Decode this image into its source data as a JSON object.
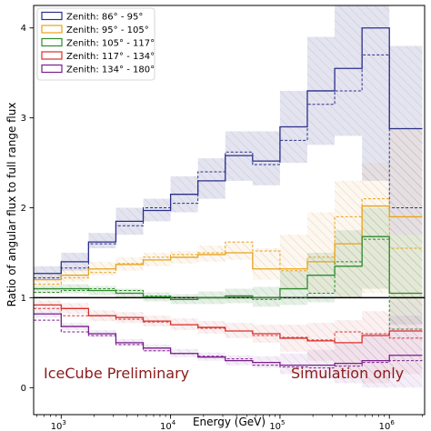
{
  "chart_data": {
    "type": "line",
    "xlabel": "Energy (GeV)",
    "ylabel": "Ratio of angular flux to full range flux",
    "xscale": "log",
    "xlim": [
      560,
      2100000
    ],
    "ylim": [
      -0.3,
      4.25
    ],
    "x_ticks": [
      {
        "value": 1000,
        "base": "10",
        "exp": "3"
      },
      {
        "value": 10000,
        "base": "10",
        "exp": "4"
      },
      {
        "value": 100000,
        "base": "10",
        "exp": "5"
      },
      {
        "value": 1000000,
        "base": "10",
        "exp": "6"
      }
    ],
    "y_ticks": [
      0,
      1,
      2,
      3,
      4
    ],
    "reference_line": 1,
    "legend_position": "top-left",
    "bin_edges": [
      562,
      1000,
      1778,
      3162,
      5623,
      10000,
      17783,
      31623,
      56234,
      100000,
      177828,
      316228,
      562341,
      1000000,
      2000000
    ],
    "series": [
      {
        "name": "Zenith: 86° - 95°",
        "color": "#2b2f8a",
        "band_color": "#2b2f8a",
        "values": [
          1.27,
          1.4,
          1.62,
          1.85,
          1.97,
          2.15,
          2.3,
          2.58,
          2.52,
          2.9,
          3.3,
          3.55,
          4.0,
          2.88
        ],
        "dashed": [
          1.22,
          1.33,
          1.6,
          1.8,
          2.0,
          2.05,
          2.4,
          2.62,
          2.48,
          2.75,
          3.15,
          3.3,
          3.7,
          2.0
        ],
        "band_low": [
          1.2,
          1.3,
          1.55,
          1.7,
          1.85,
          1.95,
          2.1,
          2.3,
          2.25,
          2.5,
          2.7,
          2.8,
          2.3,
          1.7
        ],
        "band_high": [
          1.35,
          1.5,
          1.72,
          2.0,
          2.1,
          2.35,
          2.55,
          2.85,
          2.85,
          3.3,
          3.9,
          4.35,
          4.35,
          3.8
        ]
      },
      {
        "name": "Zenith: 95° - 105°",
        "color": "#e8a317",
        "band_color": "#f5c27a",
        "values": [
          1.2,
          1.25,
          1.32,
          1.37,
          1.42,
          1.45,
          1.48,
          1.5,
          1.32,
          1.32,
          1.4,
          1.6,
          2.02,
          1.9
        ],
        "dashed": [
          1.15,
          1.22,
          1.28,
          1.38,
          1.45,
          1.48,
          1.5,
          1.62,
          1.52,
          1.3,
          1.45,
          1.9,
          2.1,
          1.55
        ],
        "band_low": [
          1.15,
          1.18,
          1.25,
          1.3,
          1.35,
          1.38,
          1.4,
          1.42,
          1.2,
          1.1,
          1.05,
          1.0,
          1.05,
          0.95
        ],
        "band_high": [
          1.25,
          1.32,
          1.4,
          1.45,
          1.5,
          1.52,
          1.58,
          1.62,
          1.55,
          1.7,
          1.95,
          2.3,
          2.5,
          2.9
        ]
      },
      {
        "name": "Zenith: 105° - 117°",
        "color": "#2e8b2e",
        "band_color": "#2e8b2e",
        "values": [
          1.1,
          1.1,
          1.08,
          1.05,
          1.01,
          0.98,
          1.0,
          1.02,
          1.0,
          1.1,
          1.25,
          1.35,
          1.68,
          1.05
        ],
        "dashed": [
          1.06,
          1.08,
          1.1,
          1.08,
          1.02,
          1.0,
          1.0,
          1.0,
          0.98,
          1.0,
          1.05,
          1.4,
          1.65,
          0.65
        ],
        "band_low": [
          1.05,
          1.05,
          1.03,
          1.0,
          0.96,
          0.93,
          0.93,
          0.94,
          0.9,
          0.92,
          0.95,
          1.0,
          1.1,
          0.7
        ],
        "band_high": [
          1.14,
          1.15,
          1.13,
          1.1,
          1.06,
          1.04,
          1.07,
          1.1,
          1.12,
          1.3,
          1.5,
          1.75,
          2.0,
          1.7
        ]
      },
      {
        "name": "Zenith: 117° - 134°",
        "color": "#d9302b",
        "band_color": "#e88a8a",
        "values": [
          0.92,
          0.88,
          0.8,
          0.78,
          0.74,
          0.7,
          0.67,
          0.63,
          0.6,
          0.55,
          0.52,
          0.5,
          0.58,
          0.63
        ],
        "dashed": [
          0.88,
          0.8,
          0.8,
          0.76,
          0.73,
          0.7,
          0.66,
          0.63,
          0.58,
          0.56,
          0.53,
          0.62,
          0.6,
          0.55
        ],
        "band_low": [
          0.86,
          0.82,
          0.74,
          0.72,
          0.68,
          0.64,
          0.6,
          0.55,
          0.5,
          0.4,
          0.3,
          0.15,
          0.05,
          0.15
        ],
        "band_high": [
          0.97,
          0.94,
          0.86,
          0.84,
          0.8,
          0.77,
          0.74,
          0.72,
          0.7,
          0.7,
          0.72,
          0.75,
          0.85,
          0.95
        ]
      },
      {
        "name": "Zenith: 134° - 180°",
        "color": "#7a1f8c",
        "band_color": "#b07acb",
        "values": [
          0.82,
          0.68,
          0.6,
          0.5,
          0.44,
          0.38,
          0.34,
          0.3,
          0.28,
          0.25,
          0.25,
          0.27,
          0.3,
          0.36
        ],
        "dashed": [
          0.75,
          0.62,
          0.58,
          0.48,
          0.41,
          0.38,
          0.35,
          0.32,
          0.25,
          0.23,
          0.22,
          0.24,
          0.28,
          0.3
        ],
        "band_low": [
          0.78,
          0.64,
          0.56,
          0.46,
          0.4,
          0.34,
          0.3,
          0.25,
          0.22,
          0.15,
          0.1,
          0.05,
          0.0,
          0.0
        ],
        "band_high": [
          0.86,
          0.72,
          0.64,
          0.54,
          0.48,
          0.43,
          0.39,
          0.36,
          0.35,
          0.38,
          0.42,
          0.5,
          0.6,
          0.8
        ]
      }
    ]
  },
  "annotations": {
    "left": "IceCube Preliminary",
    "right": "Simulation only"
  }
}
